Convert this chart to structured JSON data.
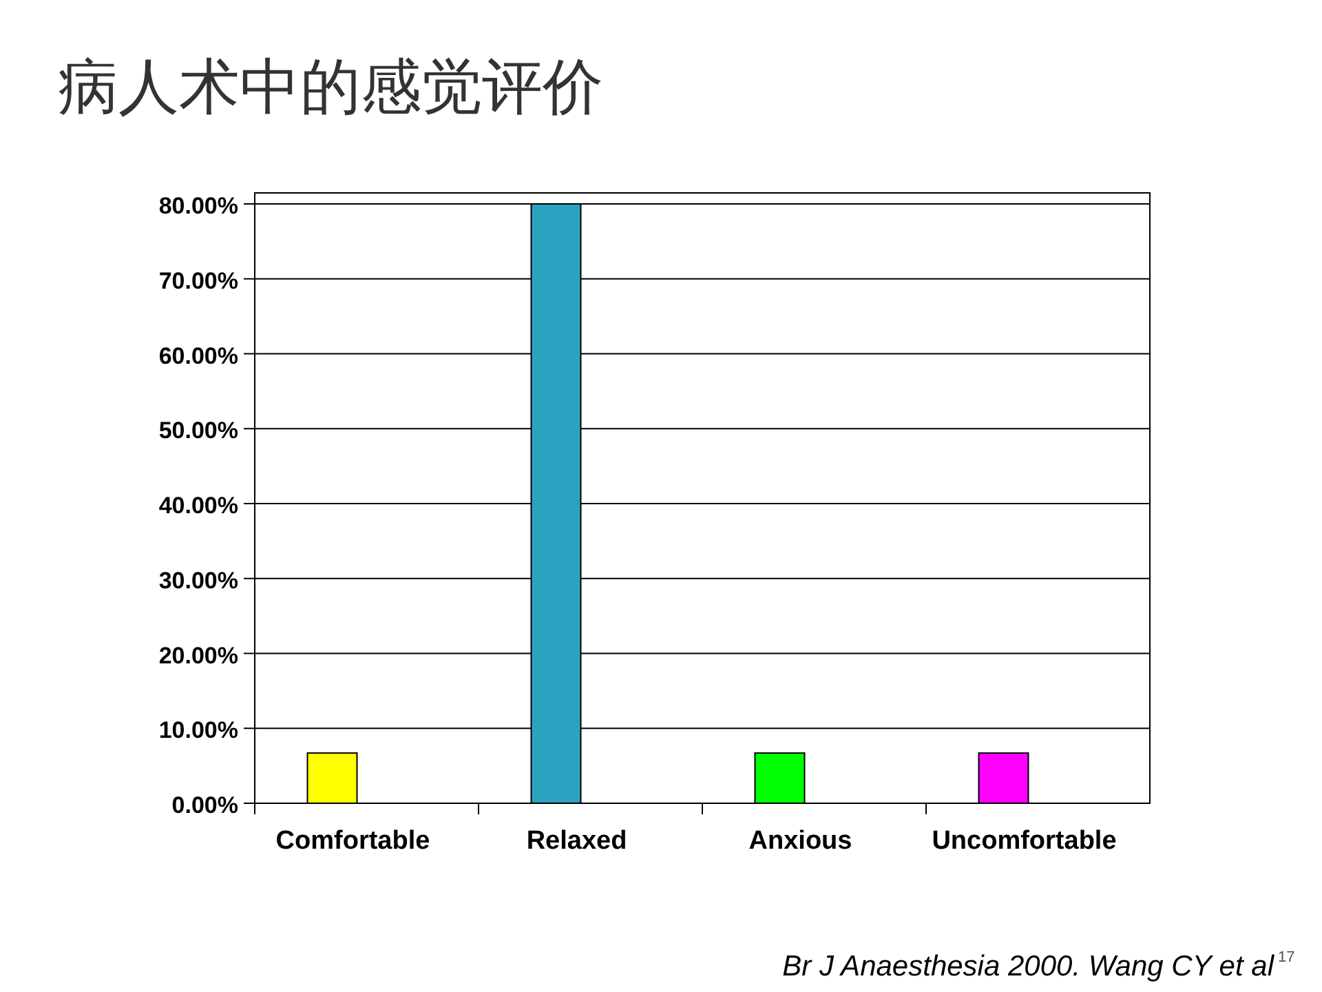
{
  "chart_data": {
    "type": "bar",
    "title": "病人术中的感觉评价",
    "categories": [
      "Comfortable",
      "Relaxed",
      "Anxious",
      "Uncomfortable"
    ],
    "values": [
      6.7,
      80,
      6.7,
      6.7
    ],
    "colors": [
      "#ffff00",
      "#2ba3c0",
      "#00ff00",
      "#ff00ff"
    ],
    "ylim": [
      0,
      80
    ],
    "yticks": [
      {
        "value": 0,
        "label": "0.00%"
      },
      {
        "value": 10,
        "label": "10.00%"
      },
      {
        "value": 20,
        "label": "20.00%"
      },
      {
        "value": 30,
        "label": "30.00%"
      },
      {
        "value": 40,
        "label": "40.00%"
      },
      {
        "value": 50,
        "label": "50.00%"
      },
      {
        "value": 60,
        "label": "60.00%"
      },
      {
        "value": 70,
        "label": "70.00%"
      },
      {
        "value": 80,
        "label": "80.00%"
      }
    ],
    "grid": "y",
    "annotations": [
      "Br J Anaesthesia 2000. Wang CY et al",
      "17"
    ]
  }
}
